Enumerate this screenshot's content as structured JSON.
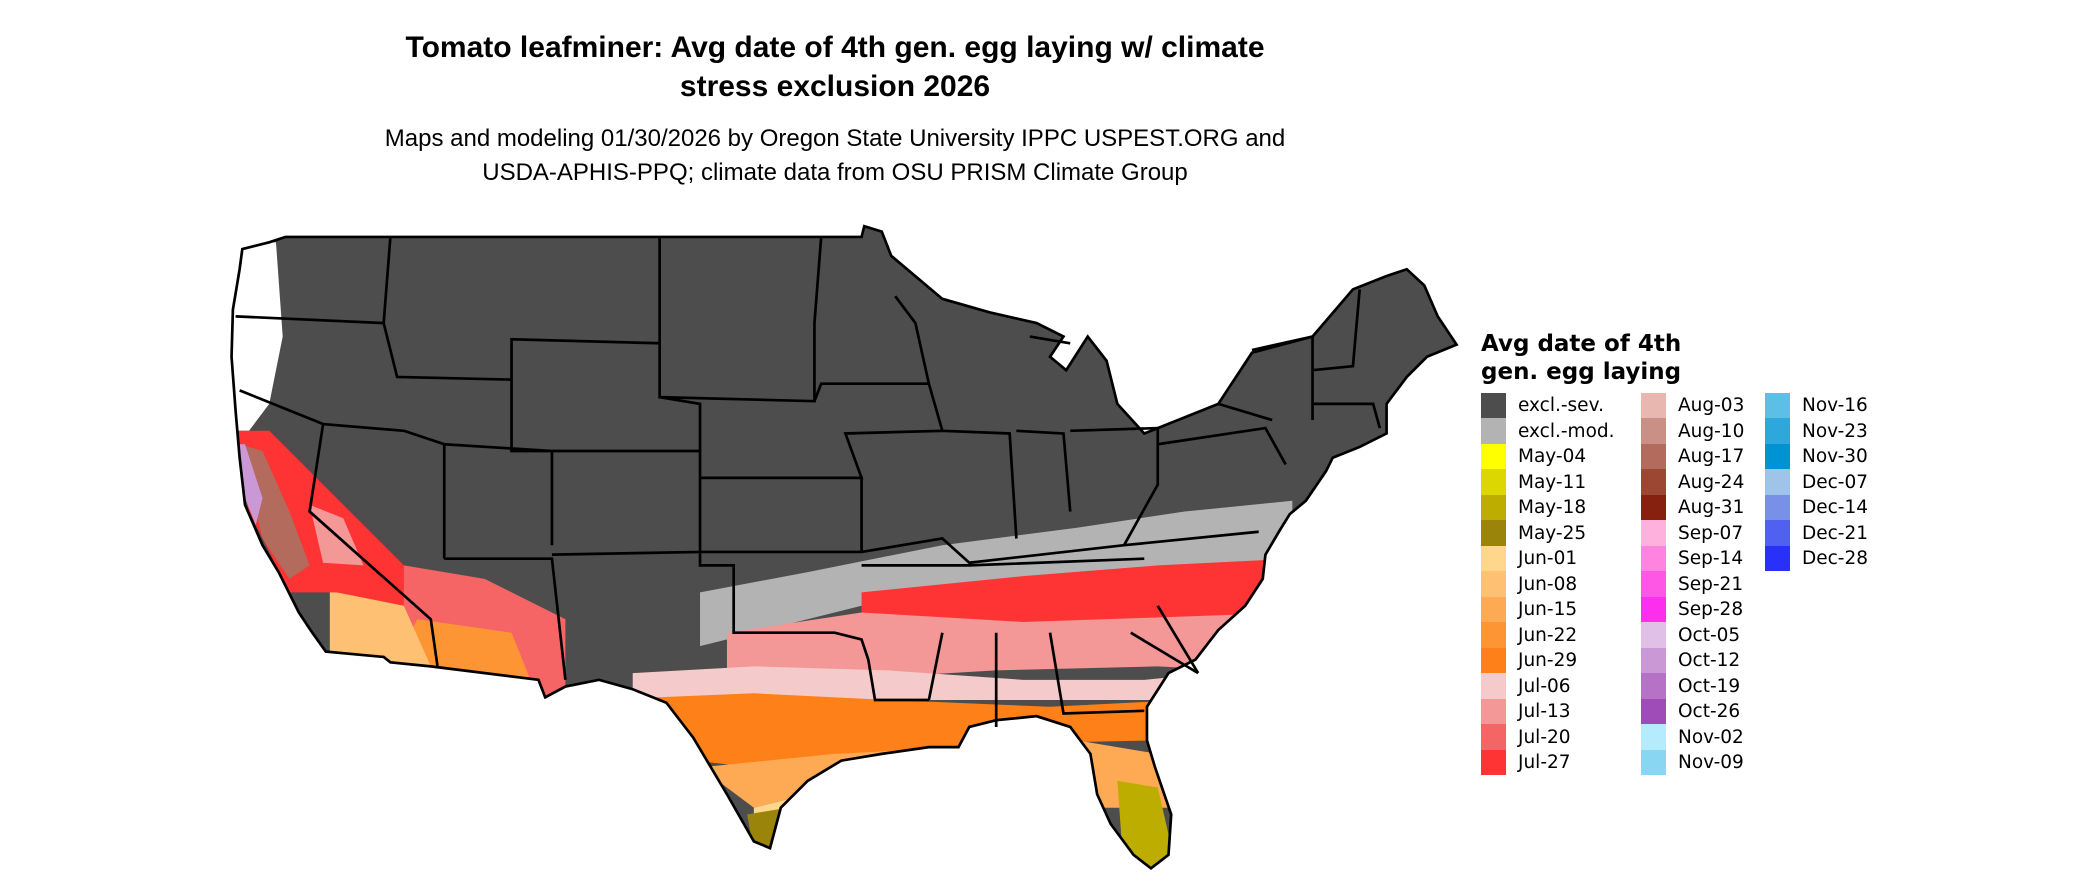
{
  "title": {
    "line1": "Tomato leafminer: Avg date of 4th gen. egg laying w/ climate",
    "line2": "stress exclusion 2026"
  },
  "subtitle": {
    "line1": "Maps and modeling 01/30/2026 by Oregon State University IPPC USPEST.ORG and",
    "line2": "USDA-APHIS-PPQ; climate data from OSU PRISM Climate Group"
  },
  "map": {
    "region": "Contiguous United States",
    "state_border_color": "#000000",
    "excluded_severe_color": "#4d4d4d"
  },
  "legend": {
    "title_line1": "Avg date of 4th",
    "title_line2": "gen. egg laying",
    "columns": [
      [
        {
          "label": "excl.-sev.",
          "color": "#4d4d4d"
        },
        {
          "label": "excl.-mod.",
          "color": "#b3b3b3"
        },
        {
          "label": "May-04",
          "color": "#ffff00"
        },
        {
          "label": "May-11",
          "color": "#dcd700"
        },
        {
          "label": "May-18",
          "color": "#bcad00"
        },
        {
          "label": "May-25",
          "color": "#9a8409"
        },
        {
          "label": "Jun-01",
          "color": "#fed68c"
        },
        {
          "label": "Jun-08",
          "color": "#fec072"
        },
        {
          "label": "Jun-15",
          "color": "#feaa55"
        },
        {
          "label": "Jun-22",
          "color": "#fe9535"
        },
        {
          "label": "Jun-29",
          "color": "#fe8018"
        },
        {
          "label": "Jul-06",
          "color": "#f5caca"
        },
        {
          "label": "Jul-13",
          "color": "#f39797"
        },
        {
          "label": "Jul-20",
          "color": "#f66565"
        },
        {
          "label": "Jul-27",
          "color": "#fe3434"
        }
      ],
      [
        {
          "label": "Aug-03",
          "color": "#e8b8b0"
        },
        {
          "label": "Aug-10",
          "color": "#cb9085"
        },
        {
          "label": "Aug-17",
          "color": "#b26b5c"
        },
        {
          "label": "Aug-24",
          "color": "#9c4634"
        },
        {
          "label": "Aug-31",
          "color": "#86200f"
        },
        {
          "label": "Sep-07",
          "color": "#feb1dc"
        },
        {
          "label": "Sep-14",
          "color": "#fe84e0"
        },
        {
          "label": "Sep-21",
          "color": "#fe57e5"
        },
        {
          "label": "Sep-28",
          "color": "#fe2eee"
        },
        {
          "label": "Oct-05",
          "color": "#e0c0e6"
        },
        {
          "label": "Oct-12",
          "color": "#ca98d4"
        },
        {
          "label": "Oct-19",
          "color": "#b572c6"
        },
        {
          "label": "Oct-26",
          "color": "#a04cb8"
        },
        {
          "label": "Nov-02",
          "color": "#b4ecfe"
        },
        {
          "label": "Nov-09",
          "color": "#88d6f2"
        }
      ],
      [
        {
          "label": "Nov-16",
          "color": "#5cbfe6"
        },
        {
          "label": "Nov-23",
          "color": "#2ea8dc"
        },
        {
          "label": "Nov-30",
          "color": "#0093d3"
        },
        {
          "label": "Dec-07",
          "color": "#a0c4e8"
        },
        {
          "label": "Dec-14",
          "color": "#7890e8"
        },
        {
          "label": "Dec-21",
          "color": "#5060f0"
        },
        {
          "label": "Dec-28",
          "color": "#2830fa"
        }
      ]
    ]
  }
}
